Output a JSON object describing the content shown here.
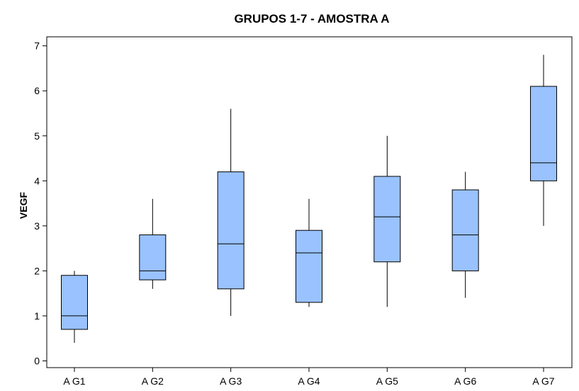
{
  "chart_data": {
    "type": "boxplot",
    "title": "GRUPOS 1-7 - AMOSTRA A",
    "xlabel": "",
    "ylabel": "VEGF",
    "ylim": [
      -0.15,
      7.2
    ],
    "yticks": [
      0,
      1,
      2,
      3,
      4,
      5,
      6,
      7
    ],
    "grid": false,
    "categories": [
      "A G1",
      "A G2",
      "A G3",
      "A G4",
      "A G5",
      "A G6",
      "A G7"
    ],
    "boxes": [
      {
        "category": "A G1",
        "min": 0.4,
        "q1": 0.7,
        "median": 1.0,
        "q3": 1.9,
        "max": 2.0
      },
      {
        "category": "A G2",
        "min": 1.6,
        "q1": 1.8,
        "median": 2.0,
        "q3": 2.8,
        "max": 3.6
      },
      {
        "category": "A G3",
        "min": 1.0,
        "q1": 1.6,
        "median": 2.6,
        "q3": 4.2,
        "max": 5.6
      },
      {
        "category": "A G4",
        "min": 1.2,
        "q1": 1.3,
        "median": 2.4,
        "q3": 2.9,
        "max": 3.6
      },
      {
        "category": "A G5",
        "min": 1.2,
        "q1": 2.2,
        "median": 3.2,
        "q3": 4.1,
        "max": 5.0
      },
      {
        "category": "A G6",
        "min": 1.4,
        "q1": 2.0,
        "median": 2.8,
        "q3": 3.8,
        "max": 4.2
      },
      {
        "category": "A G7",
        "min": 3.0,
        "q1": 4.0,
        "median": 4.4,
        "q3": 6.1,
        "max": 6.8
      }
    ],
    "colors": {
      "box_fill": "#99c2ff",
      "stroke": "#000000",
      "background": "#ffffff"
    }
  }
}
